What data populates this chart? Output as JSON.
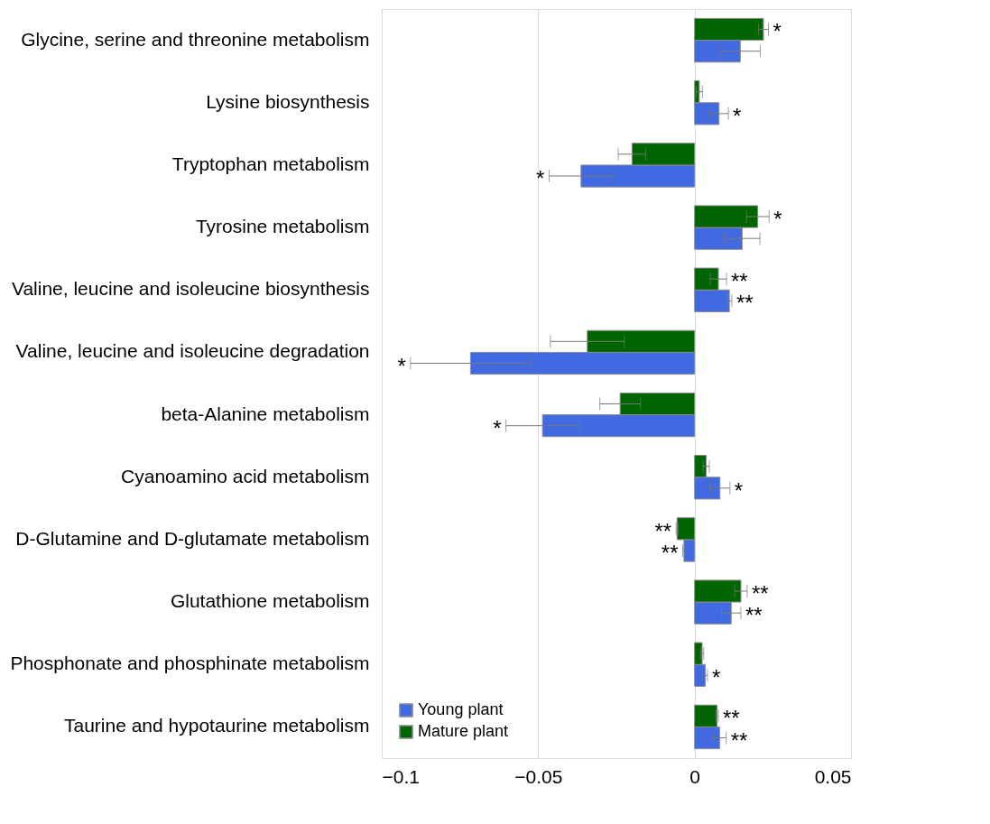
{
  "chart_data": {
    "type": "bar",
    "orientation": "horizontal",
    "categories": [
      "Glycine, serine and threonine metabolism",
      "Lysine biosynthesis",
      "Tryptophan metabolism",
      "Tyrosine metabolism",
      "Valine, leucine and isoleucine biosynthesis",
      "Valine, leucine and isoleucine degradation",
      "beta-Alanine metabolism",
      "Cyanoamino acid metabolism",
      "D-Glutamine and D-glutamate metabolism",
      "Glutathione metabolism",
      "Phosphonate and phosphinate metabolism",
      "Taurine and hypotaurine metabolism"
    ],
    "series": [
      {
        "name": "Young plant",
        "color": "#4169e1",
        "values": [
          0.0146,
          0.0078,
          -0.0363,
          0.0152,
          0.0111,
          -0.0716,
          -0.0486,
          0.0081,
          -0.0034,
          0.0117,
          0.0034,
          0.008
        ],
        "errors": [
          0.0064,
          0.003,
          0.0102,
          0.0057,
          0.0008,
          0.0192,
          0.0117,
          0.0032,
          0.0004,
          0.0031,
          0.0007,
          0.0021
        ],
        "value_labels": [
          null,
          "*",
          "*",
          null,
          "**",
          "*",
          "*",
          "*",
          "**",
          "**",
          "*",
          "**"
        ]
      },
      {
        "name": "Mature plant",
        "color": "#006400",
        "values": [
          0.022,
          0.0015,
          -0.02,
          0.0202,
          0.0076,
          -0.0343,
          -0.0238,
          0.0037,
          -0.0056,
          0.0148,
          0.0024,
          0.0072
        ],
        "errors": [
          0.0016,
          0.001,
          0.0044,
          0.0036,
          0.0026,
          0.0118,
          0.0065,
          0.001,
          0.0003,
          0.002,
          0.0005,
          0.0004
        ],
        "value_labels": [
          "*",
          null,
          null,
          "*",
          "**",
          null,
          null,
          null,
          "**",
          "**",
          null,
          "**"
        ]
      }
    ],
    "xlim": [
      -0.1,
      0.05
    ],
    "xticks": [
      -0.1,
      -0.05,
      0,
      0.05
    ],
    "grid": "x",
    "legend": "bottom left"
  }
}
